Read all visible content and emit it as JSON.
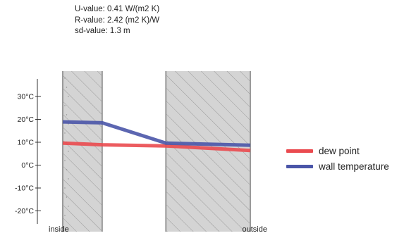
{
  "metrics": {
    "u_value": "U-value: 0.41 W/(m2 K)",
    "r_value": "R-value: 2.42 (m2 K)/W",
    "sd_value": "sd-value: 1.3 m"
  },
  "chart_data": {
    "type": "line",
    "title": "",
    "xlabel": "",
    "ylabel": "",
    "ylim": [
      -25,
      40
    ],
    "yticks": [
      -20,
      -10,
      0,
      10,
      20,
      30
    ],
    "ytick_labels": [
      "-20°C",
      "-10°C",
      "0°C",
      "10°C",
      "20°C",
      "30°C"
    ],
    "x_labels": {
      "left": "inside",
      "right": "outside"
    },
    "x_boundaries": [
      0,
      0.21,
      0.55,
      1.0
    ],
    "layers": [
      {
        "from": 0.0,
        "to": 0.21,
        "fill": "#d4d4d4",
        "hatch": true
      },
      {
        "from": 0.21,
        "to": 0.55,
        "fill": "#ffffff",
        "hatch": false
      },
      {
        "from": 0.55,
        "to": 1.0,
        "fill": "#d4d4d4",
        "hatch": true
      }
    ],
    "series": [
      {
        "name": "dew point",
        "color": "#ea4a4f",
        "x": [
          0.0,
          0.21,
          0.55,
          1.0
        ],
        "y": [
          9.6,
          8.9,
          8.4,
          6.4
        ]
      },
      {
        "name": "wall temperature",
        "color": "#4a55a8",
        "x": [
          0.0,
          0.21,
          0.55,
          1.0
        ],
        "y": [
          18.9,
          18.5,
          9.6,
          8.7
        ]
      }
    ],
    "legend": "right",
    "grid": false
  }
}
